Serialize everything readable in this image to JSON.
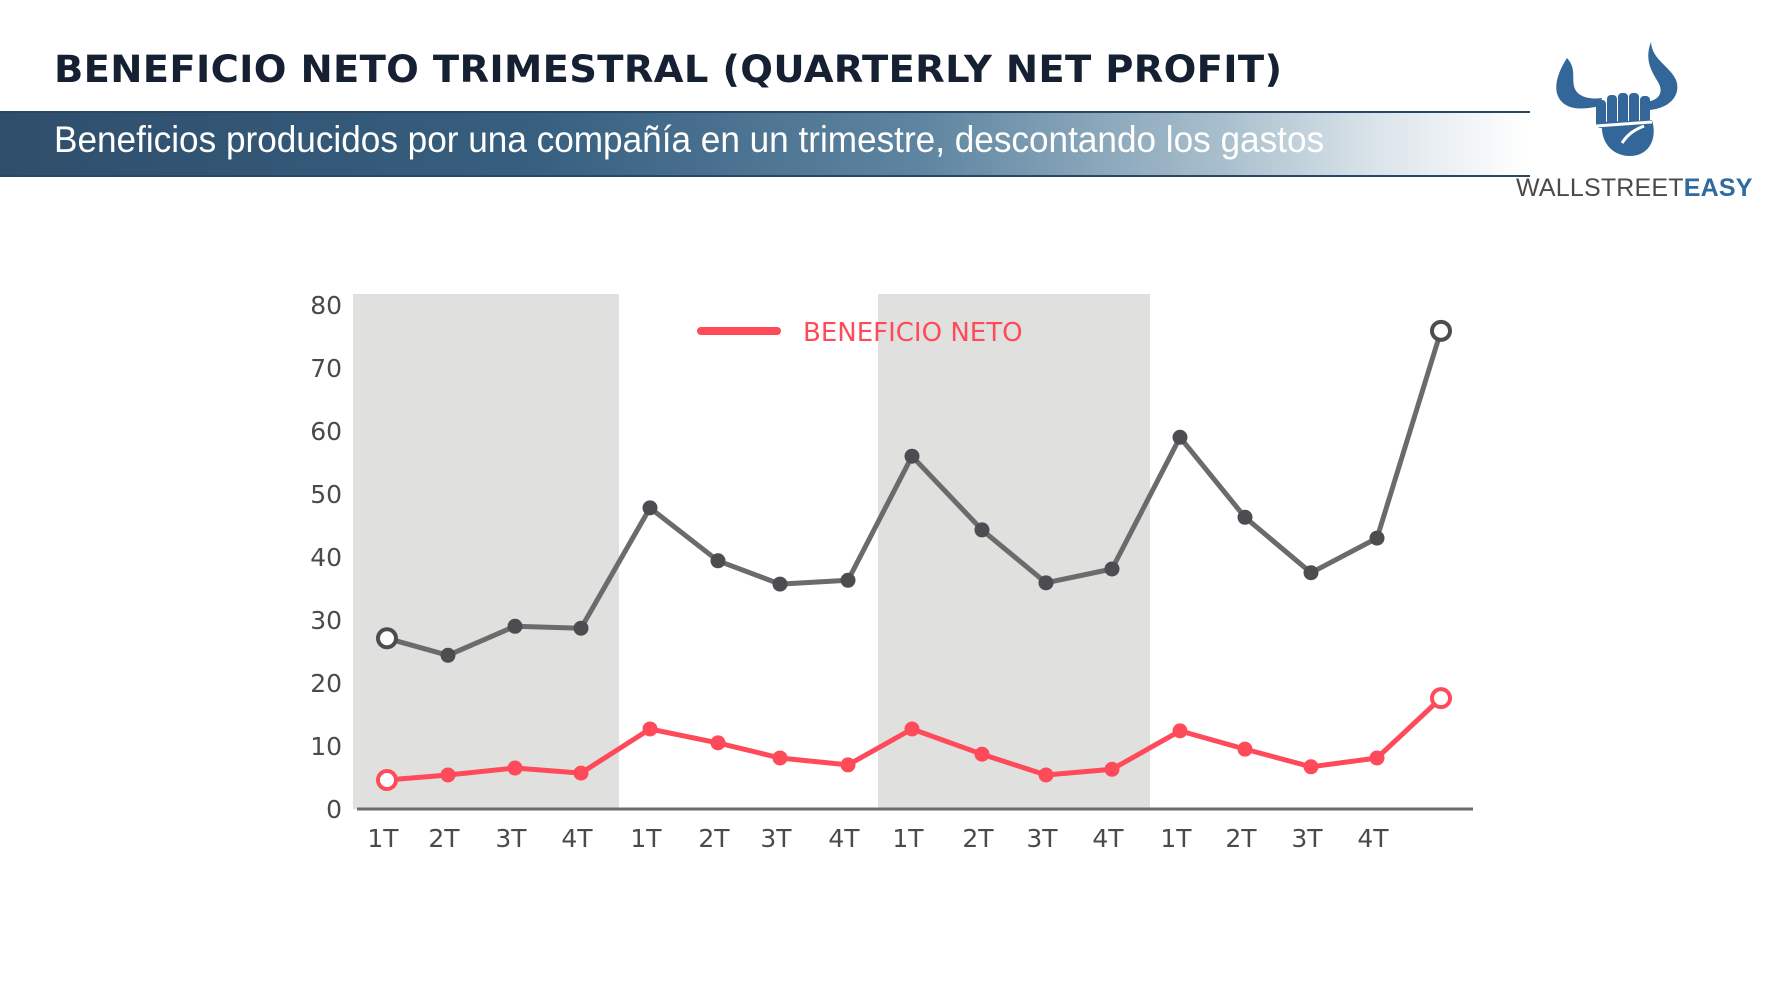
{
  "header": {
    "title": "BENEFICIO NETO TRIMESTRAL (QUARTERLY NET PROFIT)",
    "subtitle": "Beneficios producidos por una compañía en un trimestre, descontando los gastos"
  },
  "brand": {
    "name_light": "WALLSTREET",
    "name_bold": "EASY",
    "logo_icon": "bull-horns-fist-icon",
    "color": "#336699"
  },
  "legend": {
    "label": "BENEFICIO NETO",
    "color": "#ff4a5a"
  },
  "colors": {
    "net_profit": "#ff4a5a",
    "revenue_line": "#6b6b6b",
    "revenue_dots": "#4b4d50",
    "band": "#e0e0df",
    "axis": "#6b6b6b",
    "title": "#152033"
  },
  "chart_data": {
    "type": "line",
    "title": "BENEFICIO NETO TRIMESTRAL (QUARTERLY NET PROFIT)",
    "subtitle": "Beneficios producidos por una compañía en un trimestre, descontando los gastos",
    "xlabel": "",
    "ylabel": "",
    "ylim": [
      0,
      80
    ],
    "yticks": [
      0,
      10,
      20,
      30,
      40,
      50,
      60,
      70,
      80
    ],
    "categories": [
      "1T",
      "2T",
      "3T",
      "4T",
      "1T",
      "2T",
      "3T",
      "4T",
      "1T",
      "2T",
      "3T",
      "4T",
      "1T",
      "2T",
      "3T",
      "4T",
      ""
    ],
    "grid": false,
    "legend_position": "top-center",
    "shaded_year_bands": [
      [
        0,
        3
      ],
      [
        8,
        11
      ]
    ],
    "series": [
      {
        "name": "(unlabeled gray series)",
        "color": "#6b6b6b",
        "values": [
          27.1,
          24.4,
          29.0,
          28.7,
          47.8,
          39.4,
          35.7,
          36.3,
          56.0,
          44.3,
          35.9,
          38.1,
          59.0,
          46.3,
          37.5,
          43.0,
          75.9
        ]
      },
      {
        "name": "BENEFICIO NETO",
        "color": "#ff4a5a",
        "values": [
          4.6,
          5.4,
          6.5,
          5.7,
          12.7,
          10.5,
          8.1,
          7.0,
          12.7,
          8.7,
          5.4,
          6.3,
          12.4,
          9.5,
          6.7,
          8.1,
          17.6
        ]
      }
    ],
    "annotations": [
      "first and last points drawn as open circles"
    ]
  }
}
